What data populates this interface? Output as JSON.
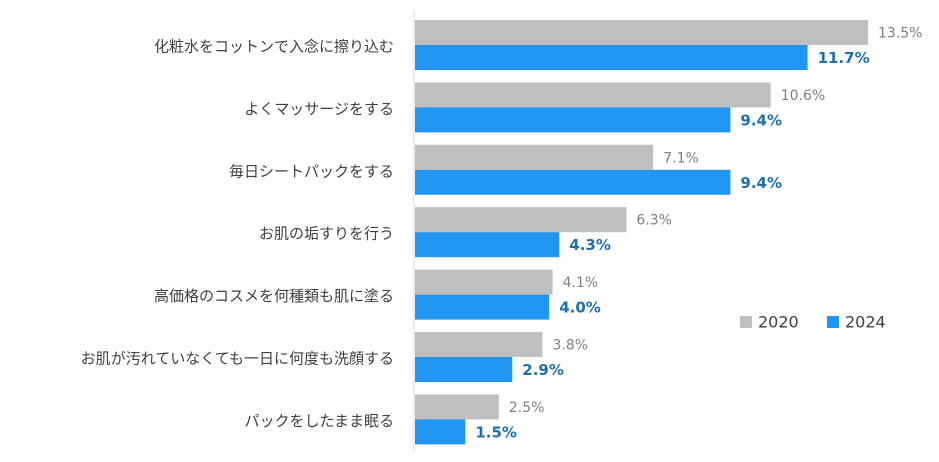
{
  "chart_data": {
    "type": "bar",
    "orientation": "horizontal",
    "categories": [
      "化粧水をコットンで入念に擦り込む",
      "よくマッサージをする",
      "毎日シートパックをする",
      "お肌の垢すりを行う",
      "高価格のコスメを何種類も肌に塗る",
      "お肌が汚れていなくても一日に何度も洗顔する",
      "パックをしたまま眠る"
    ],
    "series": [
      {
        "name": "2020",
        "values": [
          13.5,
          10.6,
          7.1,
          6.3,
          4.1,
          3.8,
          2.5
        ],
        "labels": [
          "13.5%",
          "10.6%",
          "7.1%",
          "6.3%",
          "4.1%",
          "3.8%",
          "2.5%"
        ],
        "color": "#bfbfbf"
      },
      {
        "name": "2024",
        "values": [
          11.7,
          9.4,
          9.4,
          4.3,
          4.0,
          2.9,
          1.5
        ],
        "labels": [
          "11.7%",
          "9.4%",
          "9.4%",
          "4.3%",
          "4.0%",
          "2.9%",
          "1.5%"
        ],
        "color": "#2196f3"
      }
    ],
    "xlim": [
      0,
      14.5
    ],
    "grid": false,
    "legend_position": "right-middle",
    "label_color_2020": "#7f7f7f",
    "label_color_2024": "#1f6fae"
  }
}
